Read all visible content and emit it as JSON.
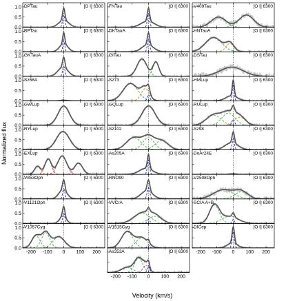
{
  "figure": {
    "ylabel": "Normalized flux",
    "xlabel": "Velocity (km/s)",
    "line_label": "[O I] 6300"
  },
  "chart_data": {
    "type": "line",
    "layout": {
      "columns": 3
    },
    "xlim": [
      -250,
      250
    ],
    "ylim": [
      0,
      1.2
    ],
    "xticks": [
      -200,
      -100,
      0,
      100,
      200
    ],
    "yticks": [
      0,
      0.5,
      1.0
    ],
    "ytick_labels": [
      "0.0",
      "0.5",
      "1.0"
    ],
    "colors": {
      "observed": "#c8c8c8",
      "fit": "#555555",
      "broad_green": "#4aa84a",
      "broad_red": "#c0392b",
      "narrow": "#2020cc",
      "sub_extra": "#e08020",
      "sub_pink": "#cc44aa"
    },
    "objects": [
      {
        "name": "DPTau",
        "col": 0,
        "row": 0,
        "noise": 0.03,
        "components": [
          {
            "mu": 0,
            "sigma": 30,
            "amp": 0.35,
            "color": "broad_green"
          },
          {
            "mu": 0,
            "sigma": 7,
            "amp": 0.6,
            "color": "narrow"
          }
        ]
      },
      {
        "name": "FNTau",
        "col": 1,
        "row": 0,
        "noise": 0.03,
        "components": [
          {
            "mu": -5,
            "sigma": 40,
            "amp": 0.3,
            "color": "broad_green"
          },
          {
            "mu": 0,
            "sigma": 7,
            "amp": 0.65,
            "color": "narrow"
          }
        ]
      },
      {
        "name": "V409Tau",
        "col": 2,
        "row": 0,
        "noise": 0.12,
        "components": [
          {
            "mu": -90,
            "sigma": 45,
            "amp": 0.5,
            "color": "broad_green"
          },
          {
            "mu": 80,
            "sigma": 45,
            "amp": 0.6,
            "color": "broad_green"
          }
        ]
      },
      {
        "name": "BPTau",
        "col": 0,
        "row": 1,
        "noise": 0.03,
        "components": [
          {
            "mu": 0,
            "sigma": 25,
            "amp": 0.4,
            "color": "broad_green"
          },
          {
            "mu": 0,
            "sigma": 6,
            "amp": 0.55,
            "color": "narrow"
          }
        ]
      },
      {
        "name": "DKTauA",
        "col": 1,
        "row": 1,
        "noise": 0.03,
        "components": [
          {
            "mu": -5,
            "sigma": 35,
            "amp": 0.35,
            "color": "broad_green"
          },
          {
            "mu": 0,
            "sigma": 7,
            "amp": 0.6,
            "color": "narrow"
          }
        ]
      },
      {
        "name": "HNTauA",
        "col": 2,
        "row": 1,
        "noise": 0.05,
        "components": [
          {
            "mu": -120,
            "sigma": 50,
            "amp": 0.7,
            "color": "broad_green"
          },
          {
            "mu": -20,
            "sigma": 25,
            "amp": 0.4,
            "color": "sub_extra"
          }
        ]
      },
      {
        "name": "GKTauA",
        "col": 0,
        "row": 2,
        "noise": 0.03,
        "components": [
          {
            "mu": -5,
            "sigma": 30,
            "amp": 0.45,
            "color": "broad_green"
          },
          {
            "mu": 0,
            "sigma": 7,
            "amp": 0.5,
            "color": "narrow"
          }
        ]
      },
      {
        "name": "GITau",
        "col": 1,
        "row": 2,
        "noise": 0.04,
        "components": [
          {
            "mu": -40,
            "sigma": 30,
            "amp": 0.85,
            "color": "broad_green"
          },
          {
            "mu": 45,
            "sigma": 18,
            "amp": 0.7,
            "color": "broad_green"
          }
        ]
      },
      {
        "name": "DSTau",
        "col": 2,
        "row": 2,
        "noise": 0.14,
        "components": [
          {
            "mu": -10,
            "sigma": 70,
            "amp": 0.45,
            "color": "broad_red"
          }
        ]
      },
      {
        "name": "Sz68A",
        "col": 0,
        "row": 3,
        "noise": 0.02,
        "components": [
          {
            "mu": 0,
            "sigma": 20,
            "amp": 0.03,
            "color": "broad_green"
          }
        ]
      },
      {
        "name": "Sz73",
        "col": 1,
        "row": 3,
        "noise": 0.04,
        "components": [
          {
            "mu": -110,
            "sigma": 45,
            "amp": 0.85,
            "color": "broad_green"
          },
          {
            "mu": -20,
            "sigma": 25,
            "amp": 0.6,
            "color": "sub_extra"
          },
          {
            "mu": 0,
            "sigma": 8,
            "amp": 0.3,
            "color": "narrow"
          }
        ]
      },
      {
        "name": "HMLup",
        "col": 2,
        "row": 3,
        "noise": 0.04,
        "components": [
          {
            "mu": -10,
            "sigma": 35,
            "amp": 0.25,
            "color": "broad_green"
          },
          {
            "mu": 0,
            "sigma": 6,
            "amp": 0.8,
            "color": "narrow"
          }
        ]
      },
      {
        "name": "GWLup",
        "col": 0,
        "row": 4,
        "noise": 0.05,
        "components": [
          {
            "mu": 0,
            "sigma": 35,
            "amp": 0.95,
            "color": "broad_red"
          }
        ]
      },
      {
        "name": "GQLup",
        "col": 1,
        "row": 4,
        "noise": 0.05,
        "components": [
          {
            "mu": 0,
            "sigma": 40,
            "amp": 0.95,
            "color": "broad_red"
          }
        ]
      },
      {
        "name": "RULup",
        "col": 2,
        "row": 4,
        "noise": 0.05,
        "components": [
          {
            "mu": -120,
            "sigma": 45,
            "amp": 0.5,
            "color": "broad_green"
          },
          {
            "mu": -30,
            "sigma": 40,
            "amp": 0.6,
            "color": "broad_green"
          },
          {
            "mu": 40,
            "sigma": 35,
            "amp": 0.4,
            "color": "sub_extra"
          },
          {
            "mu": 0,
            "sigma": 8,
            "amp": 0.3,
            "color": "narrow"
          }
        ]
      },
      {
        "name": "RYLup",
        "col": 0,
        "row": 5,
        "noise": 0.05,
        "components": [
          {
            "mu": -5,
            "sigma": 40,
            "amp": 0.9,
            "color": "broad_green"
          }
        ]
      },
      {
        "name": "Sz102",
        "col": 1,
        "row": 5,
        "noise": 0.04,
        "components": [
          {
            "mu": -90,
            "sigma": 45,
            "amp": 0.6,
            "color": "broad_green"
          },
          {
            "mu": 0,
            "sigma": 35,
            "amp": 0.6,
            "color": "broad_green"
          },
          {
            "mu": 80,
            "sigma": 40,
            "amp": 0.45,
            "color": "broad_green"
          }
        ]
      },
      {
        "name": "Sz98",
        "col": 2,
        "row": 5,
        "noise": 0.04,
        "components": [
          {
            "mu": -10,
            "sigma": 40,
            "amp": 0.35,
            "color": "broad_green"
          },
          {
            "mu": 0,
            "sigma": 7,
            "amp": 0.55,
            "color": "narrow"
          }
        ]
      },
      {
        "name": "EXLup",
        "col": 0,
        "row": 6,
        "noise": 0.05,
        "components": [
          {
            "mu": -160,
            "sigma": 18,
            "amp": 0.4,
            "color": "sub_extra"
          },
          {
            "mu": -95,
            "sigma": 20,
            "amp": 0.75,
            "color": "broad_red"
          },
          {
            "mu": -10,
            "sigma": 28,
            "amp": 0.9,
            "color": "broad_red"
          },
          {
            "mu": 90,
            "sigma": 25,
            "amp": 0.55,
            "color": "sub_pink"
          }
        ]
      },
      {
        "name": "As205A",
        "col": 1,
        "row": 6,
        "noise": 0.03,
        "components": [
          {
            "mu": -15,
            "sigma": 40,
            "amp": 0.3,
            "color": "broad_green"
          },
          {
            "mu": 0,
            "sigma": 7,
            "amp": 0.7,
            "color": "narrow"
          }
        ]
      },
      {
        "name": "DoAr24E",
        "col": 2,
        "row": 6,
        "noise": 0.03,
        "components": [
          {
            "mu": 0,
            "sigma": 20,
            "amp": 0.03,
            "color": "broad_green"
          }
        ]
      },
      {
        "name": "V853Oph",
        "col": 0,
        "row": 7,
        "noise": 0.03,
        "components": [
          {
            "mu": -5,
            "sigma": 25,
            "amp": 0.45,
            "color": "broad_green"
          },
          {
            "mu": 0,
            "sigma": 7,
            "amp": 0.5,
            "color": "narrow"
          }
        ]
      },
      {
        "name": "RNO90",
        "col": 1,
        "row": 7,
        "noise": 0.03,
        "components": [
          {
            "mu": -10,
            "sigma": 35,
            "amp": 0.4,
            "color": "broad_green"
          },
          {
            "mu": 0,
            "sigma": 8,
            "amp": 0.55,
            "color": "narrow"
          }
        ]
      },
      {
        "name": "V2508Oph",
        "col": 2,
        "row": 7,
        "noise": 0.12,
        "components": [
          {
            "mu": -60,
            "sigma": 60,
            "amp": 0.45,
            "color": "broad_green"
          },
          {
            "mu": 50,
            "sigma": 40,
            "amp": 0.35,
            "color": "broad_green"
          }
        ]
      },
      {
        "name": "V1121Oph",
        "col": 0,
        "row": 8,
        "noise": 0.03,
        "components": [
          {
            "mu": -5,
            "sigma": 20,
            "amp": 0.35,
            "color": "broad_green"
          },
          {
            "mu": 0,
            "sigma": 7,
            "amp": 0.5,
            "color": "narrow"
          }
        ]
      },
      {
        "name": "VVCrA",
        "col": 1,
        "row": 8,
        "noise": 0.04,
        "components": [
          {
            "mu": -40,
            "sigma": 50,
            "amp": 0.5,
            "color": "broad_green"
          },
          {
            "mu": 40,
            "sigma": 40,
            "amp": 0.35,
            "color": "broad_green"
          },
          {
            "mu": 0,
            "sigma": 8,
            "amp": 0.2,
            "color": "narrow"
          }
        ]
      },
      {
        "name": "SCrA A+B",
        "col": 2,
        "row": 8,
        "noise": 0.04,
        "components": [
          {
            "mu": -115,
            "sigma": 30,
            "amp": 0.9,
            "color": "broad_green"
          },
          {
            "mu": -20,
            "sigma": 50,
            "amp": 0.35,
            "color": "broad_green"
          },
          {
            "mu": 0,
            "sigma": 7,
            "amp": 0.2,
            "color": "narrow"
          }
        ]
      },
      {
        "name": "V1057Cyg",
        "col": 0,
        "row": 9,
        "noise": 0.04,
        "components": [
          {
            "mu": -170,
            "sigma": 25,
            "amp": 0.6,
            "color": "broad_green"
          },
          {
            "mu": -110,
            "sigma": 25,
            "amp": 0.75,
            "color": "broad_green"
          },
          {
            "mu": -30,
            "sigma": 35,
            "amp": 0.55,
            "color": "broad_green"
          }
        ]
      },
      {
        "name": "V1515Cyg",
        "col": 1,
        "row": 9,
        "noise": 0.04,
        "components": [
          {
            "mu": -130,
            "sigma": 35,
            "amp": 0.8,
            "color": "broad_green"
          },
          {
            "mu": -40,
            "sigma": 35,
            "amp": 0.5,
            "color": "broad_green"
          },
          {
            "mu": 0,
            "sigma": 7,
            "amp": 0.15,
            "color": "narrow"
          }
        ]
      },
      {
        "name": "DICep",
        "col": 2,
        "row": 9,
        "noise": 0.03,
        "components": [
          {
            "mu": -5,
            "sigma": 30,
            "amp": 0.25,
            "color": "broad_green"
          },
          {
            "mu": 0,
            "sigma": 7,
            "amp": 0.8,
            "color": "narrow"
          }
        ]
      },
      {
        "name": "As353A",
        "col": 1,
        "row": 10,
        "noise": 0.05,
        "components": [
          {
            "mu": -130,
            "sigma": 35,
            "amp": 0.25,
            "color": "broad_green"
          },
          {
            "mu": -60,
            "sigma": 25,
            "amp": 0.7,
            "color": "broad_green"
          },
          {
            "mu": -15,
            "sigma": 18,
            "amp": 0.35,
            "color": "sub_pink"
          },
          {
            "mu": 0,
            "sigma": 7,
            "amp": 0.3,
            "color": "narrow"
          }
        ]
      }
    ]
  }
}
